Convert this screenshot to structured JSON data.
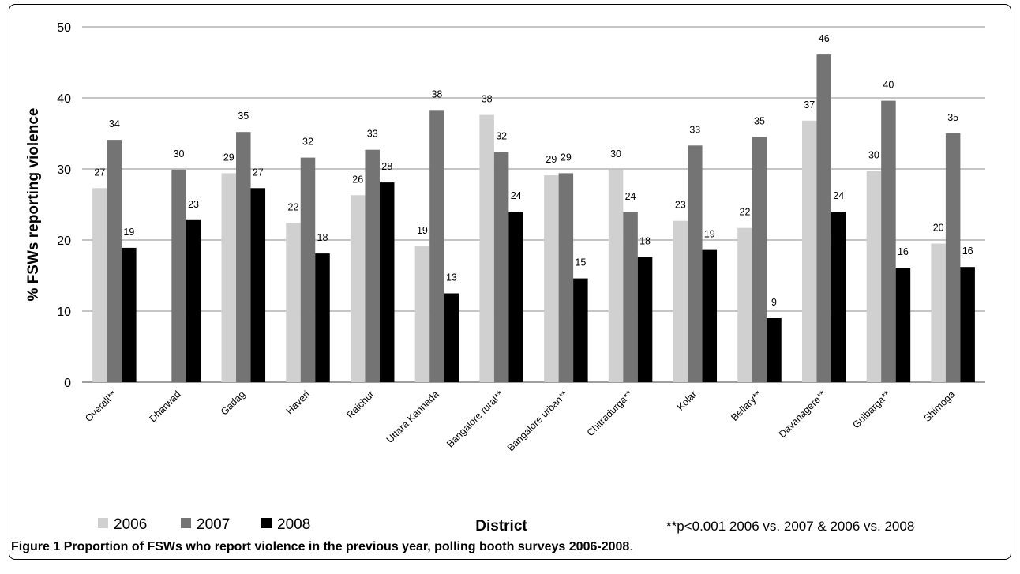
{
  "chart_data": {
    "type": "bar",
    "ylabel": "% FSWs reporting violence",
    "xlabel": "District",
    "ylim": [
      0,
      50
    ],
    "yticks": [
      0,
      10,
      20,
      30,
      40,
      50
    ],
    "grid": true,
    "legend_position": "bottom-left",
    "categories": [
      "Overall**",
      "Dharwad",
      "Gadag",
      "Haveri",
      "Raichur",
      "Uttara Kannada",
      "Bangalore rural**",
      "Bangalore urban**",
      "Chitradurga**",
      "Kolar",
      "Bellary**",
      "Davanagere**",
      "Gulbarga**",
      "Shimoga"
    ],
    "series": [
      {
        "name": "2006",
        "color": "#d0d0d0",
        "values": [
          27.3,
          null,
          29.4,
          22.4,
          26.3,
          19.1,
          37.6,
          29.1,
          29.9,
          22.7,
          21.7,
          36.8,
          29.7,
          19.5
        ],
        "labels": [
          "27",
          "",
          "29",
          "22",
          "26",
          "19",
          "38",
          "29",
          "30",
          "23",
          "22",
          "37",
          "30",
          "20"
        ]
      },
      {
        "name": "2007",
        "color": "#747474",
        "values": [
          34.1,
          29.9,
          35.2,
          31.6,
          32.7,
          38.3,
          32.4,
          29.4,
          23.9,
          33.3,
          34.5,
          46.1,
          39.6,
          35.0
        ],
        "labels": [
          "34",
          "30",
          "35",
          "32",
          "33",
          "38",
          "32",
          "29",
          "24",
          "33",
          "35",
          "46",
          "40",
          "35"
        ]
      },
      {
        "name": "2008",
        "color": "#000000",
        "values": [
          18.9,
          22.8,
          27.3,
          18.1,
          28.1,
          12.5,
          24.0,
          14.6,
          17.6,
          18.6,
          9.0,
          24.0,
          16.1,
          16.2
        ],
        "labels": [
          "19",
          "23",
          "27",
          "18",
          "28",
          "13",
          "24",
          "15",
          "18",
          "19",
          "9",
          "24",
          "16",
          "16"
        ]
      }
    ],
    "annotation": "**p<0.001 2006 vs. 2007 & 2006 vs. 2008"
  },
  "caption": {
    "label": "Figure 1",
    "text": "Proportion of FSWs who report violence in the previous year, polling booth surveys 2006-2008",
    "period": "."
  }
}
